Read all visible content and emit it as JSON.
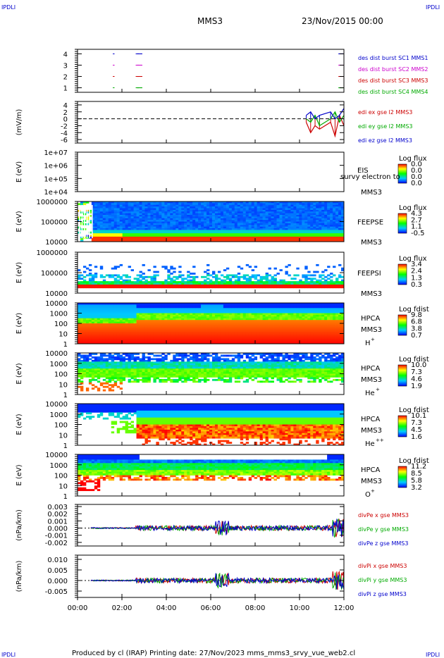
{
  "header": {
    "corner_left_top": "IPDLI",
    "corner_right_top": "IPDLI",
    "corner_left_bottom": "IPDLI",
    "corner_right_bottom": "IPDLI",
    "title": "MMS3",
    "date": "23/Nov/2015 00:00"
  },
  "footer": {
    "text": "Produced by cl (IRAP)   Printing date: 27/Nov/2023   mms_mms3_srvy_vue_web2.cl"
  },
  "time_axis": {
    "ticks": [
      "00:00",
      "02:00",
      "04:00",
      "06:00",
      "08:00",
      "10:00",
      "12:00"
    ],
    "range_hours": [
      0,
      12
    ]
  },
  "chart_data": [
    {
      "id": "des-dist-burst",
      "type": "scatter",
      "ylabel": "",
      "yticks": [
        "1",
        "2",
        "3",
        "4"
      ],
      "ylim": [
        0.6,
        4.4
      ],
      "legend_placement": "right",
      "series": [
        {
          "name": "des dist burst SC1 MMS1",
          "color": "#0000cc",
          "y": 4,
          "points_hours": [
            1.62,
            2.7,
            2.75,
            2.85,
            11.8,
            11.9
          ]
        },
        {
          "name": "des dist burst SC2 MMS2",
          "color": "#cc00cc",
          "y": 3,
          "points_hours": [
            1.62,
            2.7,
            2.75,
            2.85,
            11.8,
            11.9
          ]
        },
        {
          "name": "des dist burst SC3 MMS3",
          "color": "#cc0000",
          "y": 2,
          "points_hours": [
            1.62,
            2.7,
            2.75,
            2.85,
            11.8,
            11.9
          ]
        },
        {
          "name": "des dist burst SC4 MMS4",
          "color": "#00aa00",
          "y": 1,
          "points_hours": [
            1.62,
            2.7,
            2.75,
            2.85,
            11.8,
            11.9
          ]
        }
      ]
    },
    {
      "id": "edi-e-gse",
      "type": "line",
      "ylabel": "(mV/m)",
      "yticks": [
        "4",
        "2",
        "0",
        "-2",
        "-4",
        "-6"
      ],
      "ylim": [
        -7,
        5
      ],
      "reference_line": 0,
      "legend_placement": "right",
      "series": [
        {
          "name": "edi ex gse l2 MMS3",
          "color": "#cc0000",
          "x_hours": [
            10.3,
            10.5,
            10.7,
            10.9,
            11.4,
            11.6,
            11.8,
            12.0
          ],
          "values": [
            -1,
            -4,
            -2,
            -3,
            -1,
            -5,
            1,
            -2
          ]
        },
        {
          "name": "edi ey gse l2 MMS3",
          "color": "#00aa00",
          "x_hours": [
            10.3,
            10.5,
            10.7,
            10.9,
            11.4,
            11.6,
            11.8,
            12.0
          ],
          "values": [
            0,
            -1,
            1,
            -2,
            0,
            2,
            -1,
            1
          ]
        },
        {
          "name": "edi ez gse l2 MMS3",
          "color": "#0000cc",
          "x_hours": [
            10.3,
            10.5,
            10.7,
            10.9,
            11.4,
            11.6,
            11.8,
            12.0
          ],
          "values": [
            1,
            2,
            0,
            1,
            2,
            0,
            1,
            3
          ]
        }
      ]
    },
    {
      "id": "eis",
      "type": "heatmap",
      "ylabel": "E (eV)",
      "yticks": [
        "1e+07",
        "1e+06",
        "1e+05",
        "1e+04"
      ],
      "instrument": "EIS",
      "instrument_extra": "survy electron to",
      "spacecraft": "MMS3",
      "colorbar_title": "Log flux",
      "colorbar_ticks": [
        "0.0",
        "0.0",
        "0.0",
        "0.0"
      ]
    },
    {
      "id": "feeps-e",
      "type": "heatmap",
      "ylabel": "E (eV)",
      "yticks": [
        "1000000",
        "100000",
        "10000"
      ],
      "instrument": "FEEPSE",
      "spacecraft": "MMS3",
      "colorbar_title": "Log flux",
      "colorbar_ticks": [
        "4.3",
        "2.7",
        "1.1",
        "-0.5"
      ]
    },
    {
      "id": "feeps-i",
      "type": "heatmap",
      "ylabel": "E (eV)",
      "yticks": [
        "1000000",
        "100000",
        "10000"
      ],
      "instrument": "FEEPSI",
      "spacecraft": "MMS3",
      "colorbar_title": "Log flux",
      "colorbar_ticks": [
        "3.4",
        "2.4",
        "1.3",
        "0.3"
      ]
    },
    {
      "id": "hpca-h",
      "type": "heatmap",
      "ylabel": "E (eV)",
      "yticks": [
        "10000",
        "1000",
        "100",
        "10",
        "1"
      ],
      "instrument": "HPCA",
      "spacecraft": "MMS3",
      "species": "H",
      "species_charge": "+",
      "colorbar_title": "Log fdist",
      "colorbar_ticks": [
        "9.8",
        "6.8",
        "3.8",
        "0.7"
      ]
    },
    {
      "id": "hpca-he",
      "type": "heatmap",
      "ylabel": "E (eV)",
      "yticks": [
        "10000",
        "1000",
        "100",
        "10",
        "1"
      ],
      "instrument": "HPCA",
      "spacecraft": "MMS3",
      "species": "He",
      "species_charge": "+",
      "colorbar_title": "Log fdist",
      "colorbar_ticks": [
        "10.0",
        "7.3",
        "4.6",
        "1.9"
      ]
    },
    {
      "id": "hpca-he2",
      "type": "heatmap",
      "ylabel": "E (eV)",
      "yticks": [
        "10000",
        "1000",
        "100",
        "10",
        "1"
      ],
      "instrument": "HPCA",
      "spacecraft": "MMS3",
      "species": "He",
      "species_charge": "++",
      "colorbar_title": "Log fdist",
      "colorbar_ticks": [
        "10.1",
        "7.3",
        "4.5",
        "1.6"
      ]
    },
    {
      "id": "hpca-o",
      "type": "heatmap",
      "ylabel": "E (eV)",
      "yticks": [
        "10000",
        "1000",
        "100",
        "10",
        "1"
      ],
      "instrument": "HPCA",
      "spacecraft": "MMS3",
      "species": "O",
      "species_charge": "+",
      "colorbar_title": "Log fdist",
      "colorbar_ticks": [
        "11.2",
        "8.5",
        "5.8",
        "3.2"
      ]
    },
    {
      "id": "divpe",
      "type": "line",
      "ylabel": "(nPa/km)",
      "yticks": [
        "0.003",
        "0.002",
        "0.001",
        "0.000",
        "-0.001",
        "-0.002"
      ],
      "ylim": [
        -0.0025,
        0.0033
      ],
      "reference_line": 0,
      "legend_placement": "right",
      "series": [
        {
          "name": "divPe x gse MMS3",
          "color": "#cc0000"
        },
        {
          "name": "divPe y gse MMS3",
          "color": "#00aa00"
        },
        {
          "name": "divPe z gse MMS3",
          "color": "#0000cc"
        }
      ]
    },
    {
      "id": "divpi",
      "type": "line",
      "ylabel": "(nPa/km)",
      "yticks": [
        "0.010",
        "0.005",
        "0.000",
        "-0.005"
      ],
      "ylim": [
        -0.008,
        0.012
      ],
      "reference_line": 0,
      "legend_placement": "right",
      "series": [
        {
          "name": "divPi x gse MMS3",
          "color": "#cc0000"
        },
        {
          "name": "divPi y gse MMS3",
          "color": "#00aa00"
        },
        {
          "name": "divPi z gse MMS3",
          "color": "#0000cc"
        }
      ]
    }
  ]
}
